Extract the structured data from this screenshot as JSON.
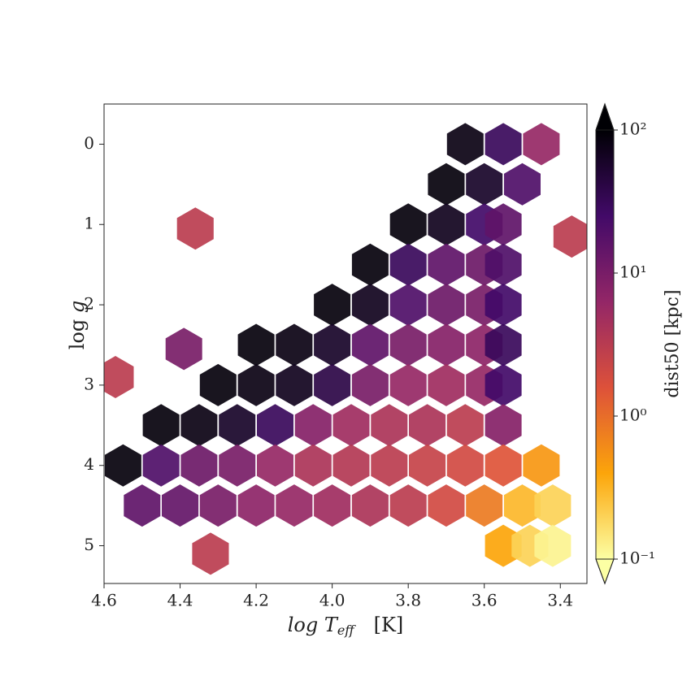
{
  "chart_data": {
    "type": "hexbin",
    "xlabel": {
      "text": "log T",
      "sub": "eff",
      "unit": "[K]"
    },
    "ylabel": {
      "text": "log ",
      "var": "g"
    },
    "xlim": [
      4.6,
      3.33
    ],
    "ylim": [
      5.47,
      -0.5
    ],
    "xticks": [
      4.6,
      4.4,
      4.2,
      {
        "value": 4.0,
        "label": "4.0"
      },
      3.8,
      3.6,
      3.4
    ],
    "yticks": [
      0,
      1,
      2,
      3,
      4,
      5
    ],
    "x": [
      3.65,
      3.55,
      3.45,
      3.7,
      3.6,
      3.5,
      3.8,
      3.7,
      3.6,
      3.55,
      3.9,
      3.8,
      3.7,
      3.6,
      3.55,
      4.0,
      3.9,
      3.8,
      3.7,
      3.6,
      3.55,
      4.2,
      4.1,
      4.0,
      3.9,
      3.8,
      3.7,
      3.6,
      3.55,
      4.3,
      4.2,
      4.1,
      4.0,
      3.9,
      3.8,
      3.7,
      3.6,
      3.55,
      4.45,
      4.35,
      4.25,
      4.15,
      4.05,
      3.95,
      3.85,
      3.75,
      3.65,
      3.55,
      4.55,
      4.45,
      4.35,
      4.25,
      4.15,
      4.05,
      3.95,
      3.85,
      3.75,
      3.65,
      3.55,
      3.45,
      4.5,
      4.4,
      4.3,
      4.2,
      4.1,
      4.0,
      3.9,
      3.8,
      3.7,
      3.6,
      3.5,
      3.42,
      3.55,
      3.48,
      3.42,
      4.36,
      4.57,
      3.37,
      4.32,
      4.39
    ],
    "y": [
      0,
      0,
      0,
      0.5,
      0.5,
      0.5,
      1,
      1,
      1,
      1,
      1.5,
      1.5,
      1.5,
      1.5,
      1.5,
      2,
      2,
      2,
      2,
      2,
      2,
      2.5,
      2.5,
      2.5,
      2.5,
      2.5,
      2.5,
      2.5,
      2.5,
      3,
      3,
      3,
      3,
      3,
      3,
      3,
      3,
      3,
      3.5,
      3.5,
      3.5,
      3.5,
      3.5,
      3.5,
      3.5,
      3.5,
      3.5,
      3.5,
      4,
      4,
      4,
      4,
      4,
      4,
      4,
      4,
      4,
      4,
      4,
      4,
      4.5,
      4.5,
      4.5,
      4.5,
      4.5,
      4.5,
      4.5,
      4.5,
      4.5,
      4.5,
      4.5,
      4.5,
      5,
      5,
      5,
      1.05,
      2.9,
      1.15,
      5.1,
      2.55
    ],
    "values": [
      80,
      30,
      6,
      90,
      60,
      20,
      90,
      70,
      25,
      15,
      90,
      30,
      15,
      12,
      20,
      90,
      70,
      20,
      12,
      10,
      25,
      90,
      80,
      60,
      15,
      10,
      8,
      7,
      30,
      90,
      80,
      70,
      40,
      10,
      6,
      5,
      6,
      25,
      90,
      80,
      60,
      30,
      8,
      5,
      4,
      4,
      3,
      8,
      90,
      20,
      12,
      10,
      6,
      4,
      3.5,
      3,
      2.5,
      2,
      1.5,
      0.5,
      15,
      14,
      10,
      7,
      6,
      5,
      4,
      3,
      2,
      0.8,
      0.3,
      0.2,
      0.4,
      0.2,
      0.12,
      3,
      3,
      3,
      3,
      10
    ],
    "colorbar": {
      "label": "dist50 [kpc]",
      "lim": [
        0.1,
        100
      ],
      "log": true,
      "ticks": [
        {
          "value": 0.1,
          "label": "10⁻¹"
        },
        {
          "value": 1,
          "label": "10⁰"
        },
        {
          "value": 10,
          "label": "10¹"
        },
        {
          "value": 100,
          "label": "10²"
        }
      ],
      "colormap": [
        "#fcffa4",
        "#fca50a",
        "#dd513a",
        "#932667",
        "#420a68",
        "#000004"
      ]
    }
  }
}
